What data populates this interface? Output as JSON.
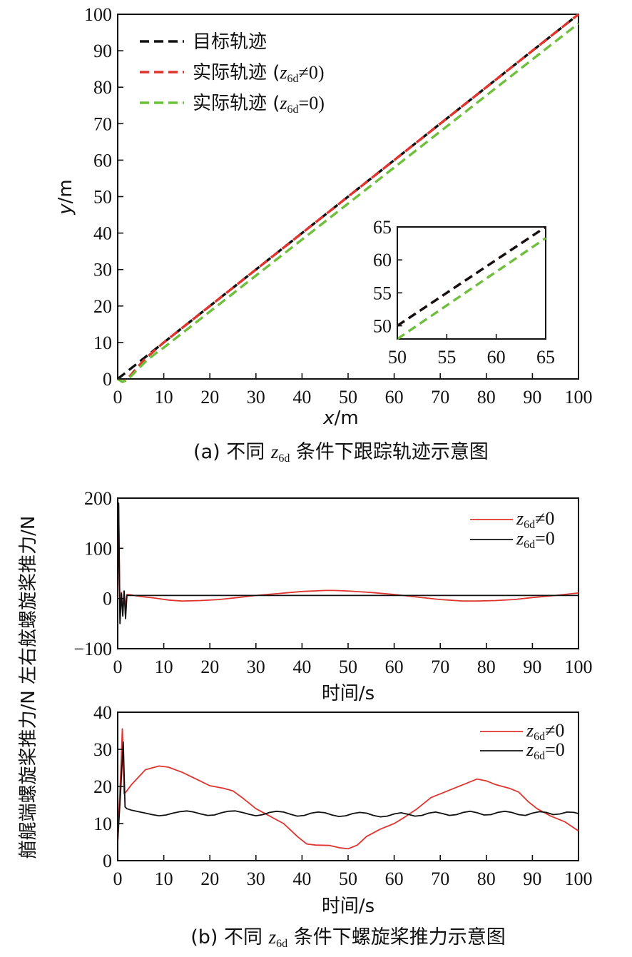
{
  "colors": {
    "target": "#111111",
    "red": "#e0342f",
    "green": "#6dbf3c",
    "black": "#111111"
  },
  "captions": {
    "a_prefix": "(a) 不同 ",
    "a_var": "z",
    "a_sub": "6d",
    "a_suffix": " 条件下跟踪轨迹示意图",
    "b_prefix": "(b) 不同 ",
    "b_var": "z",
    "b_sub": "6d",
    "b_suffix": " 条件下螺旋桨推力示意图"
  },
  "chart_data": [
    {
      "type": "line",
      "id": "trajectory",
      "xlabel_var": "x",
      "xlabel_unit": "/m",
      "ylabel_var": "y",
      "ylabel_unit": "/m",
      "xlim": [
        0,
        100
      ],
      "ylim": [
        0,
        100
      ],
      "xticks": [
        0,
        10,
        20,
        30,
        40,
        50,
        60,
        70,
        80,
        90,
        100
      ],
      "yticks": [
        0,
        10,
        20,
        30,
        40,
        50,
        60,
        70,
        80,
        90,
        100
      ],
      "legend_position": "top-left",
      "legend": [
        {
          "label": "目标轨迹",
          "var": "",
          "sub": "",
          "rel": "",
          "color_key": "target"
        },
        {
          "label": "实际轨迹 (",
          "var": "z",
          "sub": "6d",
          "rel": "≠0)",
          "color_key": "red"
        },
        {
          "label": "实际轨迹 (",
          "var": "z",
          "sub": "6d",
          "rel": "=0)",
          "color_key": "green"
        }
      ],
      "series": [
        {
          "name": "目标轨迹",
          "dashed": true,
          "color_key": "target",
          "x": [
            0,
            10,
            100
          ],
          "y": [
            0,
            10,
            100
          ]
        },
        {
          "name": "实际轨迹 (z6d≠0)",
          "dashed": true,
          "color_key": "red",
          "x": [
            0,
            1,
            2,
            4,
            6,
            8,
            10,
            100
          ],
          "y": [
            0,
            -0.8,
            -0.2,
            2.8,
            5.6,
            7.8,
            10,
            100
          ]
        },
        {
          "name": "实际轨迹 (z6d=0)",
          "dashed": true,
          "color_key": "green",
          "x": [
            0,
            1,
            2,
            4,
            6,
            8,
            10,
            100
          ],
          "y": [
            0,
            -0.8,
            -0.4,
            2.2,
            4.7,
            6.8,
            8.6,
            97.5
          ]
        }
      ],
      "inset": {
        "xlim": [
          50,
          65
        ],
        "ylim": [
          48,
          65
        ],
        "xticks": [
          50,
          55,
          60,
          65
        ],
        "yticks": [
          50,
          55,
          60,
          65
        ],
        "series": [
          {
            "color_key": "red",
            "x": [
              50,
              65
            ],
            "y": [
              50,
              65
            ]
          },
          {
            "color_key": "target",
            "x": [
              50,
              65
            ],
            "y": [
              50,
              65
            ]
          },
          {
            "color_key": "green",
            "x": [
              50,
              65
            ],
            "y": [
              48,
              63.3
            ]
          }
        ]
      }
    },
    {
      "type": "line",
      "id": "thrust-lateral",
      "xlabel": "时间/s",
      "ylabel_shared": "艏艉端螺旋桨推力/N 左右舷螺旋桨推力/N",
      "xlim": [
        0,
        100
      ],
      "ylim": [
        -100,
        200
      ],
      "xticks": [
        0,
        10,
        20,
        30,
        40,
        50,
        60,
        70,
        80,
        90,
        100
      ],
      "yticks": [
        200,
        100,
        0,
        -100
      ],
      "ytick_labels": [
        "200",
        "100",
        "0",
        "−100"
      ],
      "legend_position": "top-right",
      "legend": [
        {
          "var": "z",
          "sub": "6d",
          "rel": "≠0",
          "color_key": "red"
        },
        {
          "var": "z",
          "sub": "6d",
          "rel": "=0",
          "color_key": "black"
        }
      ],
      "series": [
        {
          "name": "z6d≠0",
          "color_key": "red",
          "x": [
            0,
            0.2,
            0.5,
            0.8,
            1.1,
            1.4,
            1.7,
            2.0,
            3,
            5,
            8,
            11,
            14,
            18,
            22,
            26,
            30,
            35,
            40,
            45,
            47,
            50,
            55,
            60,
            65,
            70,
            75,
            78,
            82,
            86,
            90,
            95,
            100
          ],
          "y": [
            0,
            185,
            -40,
            12,
            -30,
            14,
            -20,
            8,
            7,
            4,
            1,
            -3,
            -5,
            -4,
            -2,
            2,
            6,
            10,
            14,
            16,
            16,
            15,
            12,
            8,
            3,
            -2,
            -5,
            -5,
            -4,
            -2,
            2,
            6,
            11
          ]
        },
        {
          "name": "z6d=0",
          "color_key": "black",
          "x": [
            0,
            0.2,
            0.5,
            0.8,
            1.1,
            1.4,
            1.7,
            2.0,
            3,
            100
          ],
          "y": [
            0,
            190,
            -50,
            10,
            -35,
            15,
            -40,
            6,
            6,
            6
          ]
        }
      ]
    },
    {
      "type": "line",
      "id": "thrust-longitudinal",
      "xlabel": "时间/s",
      "xlim": [
        0,
        100
      ],
      "ylim": [
        0,
        40
      ],
      "xticks": [
        0,
        10,
        20,
        30,
        40,
        50,
        60,
        70,
        80,
        90,
        100
      ],
      "yticks": [
        40,
        30,
        20,
        10,
        0
      ],
      "legend_position": "top-right",
      "legend": [
        {
          "var": "z",
          "sub": "6d",
          "rel": "≠0",
          "color_key": "red"
        },
        {
          "var": "z",
          "sub": "6d",
          "rel": "=0",
          "color_key": "black"
        }
      ],
      "series": [
        {
          "name": "z6d≠0",
          "color_key": "red",
          "x": [
            0,
            0.6,
            1.0,
            1.4,
            1.8,
            3,
            6,
            9,
            11,
            14,
            17,
            20,
            23,
            25,
            27,
            30,
            33,
            36,
            39,
            41,
            43,
            46,
            48,
            50,
            52,
            54,
            57,
            60,
            62,
            65,
            68,
            71,
            73,
            75,
            78,
            80,
            82,
            85,
            87,
            89,
            91,
            94,
            97,
            100
          ],
          "y": [
            5,
            22,
            35.5,
            18,
            18.5,
            20.5,
            24.5,
            25.5,
            25.2,
            23.8,
            22,
            20.2,
            19.5,
            18.8,
            17,
            14,
            12,
            10,
            6.5,
            4.5,
            4.2,
            4.1,
            3.5,
            3.2,
            4.2,
            6.5,
            8.5,
            10,
            11.5,
            14,
            17,
            18.5,
            19.5,
            20.5,
            22,
            21.5,
            20.5,
            19.5,
            18.5,
            16,
            14,
            12,
            10.5,
            8
          ]
        },
        {
          "name": "z6d=0",
          "color_key": "black",
          "x": [
            0,
            0.6,
            1.2,
            1.6,
            2.0,
            3,
            4.5,
            6,
            7.5,
            9,
            10.5,
            12,
            13.5,
            15,
            16.5,
            18,
            19.5,
            21,
            22.5,
            24,
            25.5,
            27,
            28.5,
            30,
            31.5,
            33,
            34.5,
            36,
            37.5,
            39,
            40.5,
            42,
            43.5,
            45,
            46.5,
            48,
            49.5,
            51,
            52.5,
            54,
            55.5,
            57,
            58.5,
            60,
            61.5,
            63,
            64.5,
            66,
            67.5,
            69,
            70.5,
            72,
            73.5,
            75,
            76.5,
            78,
            79.5,
            81,
            82.5,
            84,
            85.5,
            87,
            88.5,
            90,
            91.5,
            93,
            94.5,
            96,
            97.5,
            99,
            100
          ],
          "y": [
            5,
            18,
            32,
            14.5,
            14,
            13.6,
            13.2,
            12.8,
            12.4,
            12.1,
            12.3,
            12.8,
            13.2,
            13.4,
            13.1,
            12.6,
            12.2,
            12.3,
            12.9,
            13.3,
            13.4,
            13.0,
            12.5,
            12.1,
            12.4,
            13.0,
            13.3,
            13.1,
            12.5,
            12.0,
            12.2,
            12.8,
            13.1,
            12.9,
            12.3,
            11.9,
            12.1,
            12.7,
            13.0,
            12.8,
            12.2,
            11.8,
            12.0,
            12.6,
            12.9,
            12.5,
            12.0,
            12.2,
            12.8,
            13.1,
            12.7,
            12.2,
            12.4,
            13.0,
            13.3,
            12.9,
            12.3,
            12.4,
            13.0,
            13.3,
            13.0,
            12.4,
            12.2,
            12.8,
            13.2,
            13.0,
            12.4,
            12.6,
            13.1,
            13.0,
            12.7
          ]
        }
      ]
    }
  ]
}
